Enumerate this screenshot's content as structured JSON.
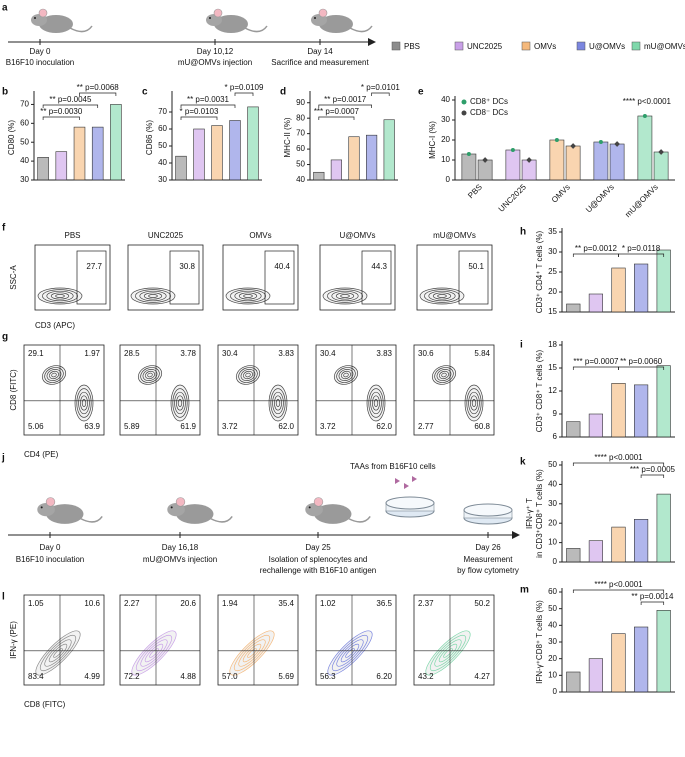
{
  "legend": {
    "items": [
      {
        "name": "PBS",
        "color": "#8c8c8c"
      },
      {
        "name": "UNC2025",
        "color": "#c9a0e8"
      },
      {
        "name": "OMVs",
        "color": "#f5b97c"
      },
      {
        "name": "U@OMVs",
        "color": "#7b86e0"
      },
      {
        "name": "mU@OMVs",
        "color": "#7fd8ab"
      }
    ]
  },
  "timeline_a": {
    "panel": "a",
    "steps": [
      {
        "day": "Day 0",
        "event": [
          "B16F10 inoculation"
        ]
      },
      {
        "day": "Day 10,12",
        "event": [
          "mU@OMVs injection"
        ]
      },
      {
        "day": "Day 14",
        "event": [
          "Sacrifice and measurement"
        ]
      }
    ]
  },
  "timeline_j": {
    "panel": "j",
    "note": "TAAs from B16F10 cells",
    "steps": [
      {
        "day": "Day 0",
        "event": [
          "B16F10 inoculation"
        ]
      },
      {
        "day": "Day 16,18",
        "event": [
          "mU@OMVs injection"
        ]
      },
      {
        "day": "Day 25",
        "event": [
          "Isolation of splenocytes and",
          "rechallenge with B16F10 antigen"
        ]
      },
      {
        "day": "Day 26",
        "event": [
          "Measurement",
          "by flow cytometry"
        ]
      }
    ]
  },
  "chart_data": [
    {
      "type": "bar",
      "panel": "b",
      "ylabel": [
        "CD80 (%)"
      ],
      "values": [
        42,
        45,
        58,
        58,
        70
      ],
      "ylim": [
        30,
        75
      ],
      "yticks": [
        30,
        40,
        50,
        60,
        70
      ],
      "annotations": [
        "** p=0.0030",
        "** p=0.0045",
        "** p=0.0068"
      ]
    },
    {
      "type": "bar",
      "panel": "c",
      "ylabel": [
        "CD86 (%)"
      ],
      "values": [
        44,
        60,
        62,
        65,
        73
      ],
      "ylim": [
        30,
        80
      ],
      "yticks": [
        30,
        40,
        50,
        60,
        70
      ],
      "annotations": [
        "* p=0.0103",
        "** p=0.0031",
        "* p=0.0109"
      ]
    },
    {
      "type": "bar",
      "panel": "d",
      "ylabel": [
        "MHC-II (%)"
      ],
      "values": [
        45,
        53,
        68,
        69,
        79
      ],
      "ylim": [
        40,
        95
      ],
      "yticks": [
        40,
        50,
        60,
        70,
        80,
        90
      ],
      "annotations": [
        "*** p=0.0007",
        "** p=0.0017",
        "* p=0.0101"
      ]
    },
    {
      "type": "grouped",
      "panel": "e",
      "ylabel": [
        "MHC-I (%)"
      ],
      "categories": [
        "PBS",
        "UNC2025",
        "OMVs",
        "U@OMVs",
        "mU@OMVs"
      ],
      "series": [
        {
          "name": "CD8⁺ DCs",
          "color": "#2e9e6a",
          "values": [
            13,
            15,
            20,
            19,
            32
          ]
        },
        {
          "name": "CD8⁻ DCs",
          "color": "#444444",
          "values": [
            10,
            10,
            17,
            18,
            14
          ]
        }
      ],
      "ylim": [
        0,
        40
      ],
      "yticks": [
        0,
        10,
        20,
        30,
        40
      ],
      "legend": "upper left",
      "annotations": [
        "**** p<0.0001"
      ]
    },
    {
      "type": "bar",
      "panel": "h",
      "ylabel": [
        "CD3⁺ CD4⁺ T cells (%)"
      ],
      "values": [
        17,
        19.5,
        26,
        27,
        30.5
      ],
      "ylim": [
        15,
        35
      ],
      "yticks": [
        15,
        20,
        25,
        30,
        35
      ],
      "annotations": [
        "** p=0.0012",
        "* p=0.0118"
      ]
    },
    {
      "type": "bar",
      "panel": "i",
      "ylabel": [
        "CD3⁺ CD8⁺ T cells (%)"
      ],
      "values": [
        8,
        9,
        13,
        12.8,
        15.3
      ],
      "ylim": [
        6,
        18
      ],
      "yticks": [
        6,
        9,
        12,
        15,
        18
      ],
      "annotations": [
        "*** p=0.0007",
        "** p=0.0060"
      ]
    },
    {
      "type": "bar",
      "panel": "k",
      "ylabel": [
        "IFN-γ⁺ T",
        "in CD3⁺CD8⁺ T cells (%)"
      ],
      "values": [
        7,
        11,
        18,
        22,
        35
      ],
      "ylim": [
        0,
        50
      ],
      "yticks": [
        0,
        10,
        20,
        30,
        40,
        50
      ],
      "annotations": [
        "**** p<0.0001",
        "*** p=0.0005"
      ]
    },
    {
      "type": "bar",
      "panel": "m",
      "ylabel": [
        "IFN-γ⁺CD8⁺ T cells (%)"
      ],
      "values": [
        12,
        20,
        35,
        39,
        49
      ],
      "ylim": [
        0,
        60
      ],
      "yticks": [
        0,
        10,
        20,
        30,
        40,
        50,
        60
      ],
      "annotations": [
        "**** p<0.0001",
        "** p=0.0014"
      ]
    }
  ],
  "flow": [
    {
      "panel": "f",
      "titles": [
        "PBS",
        "UNC2025",
        "OMVs",
        "U@OMVs",
        "mU@OMVs"
      ],
      "ylabel": "SSC-A",
      "xlabel": "CD3 (APC)",
      "gates": [
        "27.7",
        "30.8",
        "40.4",
        "44.3",
        "50.1"
      ]
    },
    {
      "panel": "g",
      "ylabel": "CD8 (FITC)",
      "xlabel": "CD4 (PE)",
      "quadrants": [
        [
          "29.1",
          "1.97",
          "5.06",
          "63.9"
        ],
        [
          "28.5",
          "3.78",
          "5.89",
          "61.9"
        ],
        [
          "30.4",
          "3.83",
          "3.72",
          "62.0"
        ],
        [
          "30.4",
          "3.83",
          "3.72",
          "62.0"
        ],
        [
          "30.6",
          "5.84",
          "2.77",
          "60.8"
        ]
      ]
    },
    {
      "panel": "l",
      "ylabel": "IFN-γ (PE)",
      "xlabel": "CD8 (FITC)",
      "quadrants": [
        [
          "1.05",
          "10.6",
          "83.4",
          "4.99"
        ],
        [
          "2.27",
          "20.6",
          "72.2",
          "4.88"
        ],
        [
          "1.94",
          "35.4",
          "57.0",
          "5.69"
        ],
        [
          "1.02",
          "36.5",
          "56.3",
          "6.20"
        ],
        [
          "2.37",
          "50.2",
          "43.2",
          "4.27"
        ]
      ]
    }
  ]
}
